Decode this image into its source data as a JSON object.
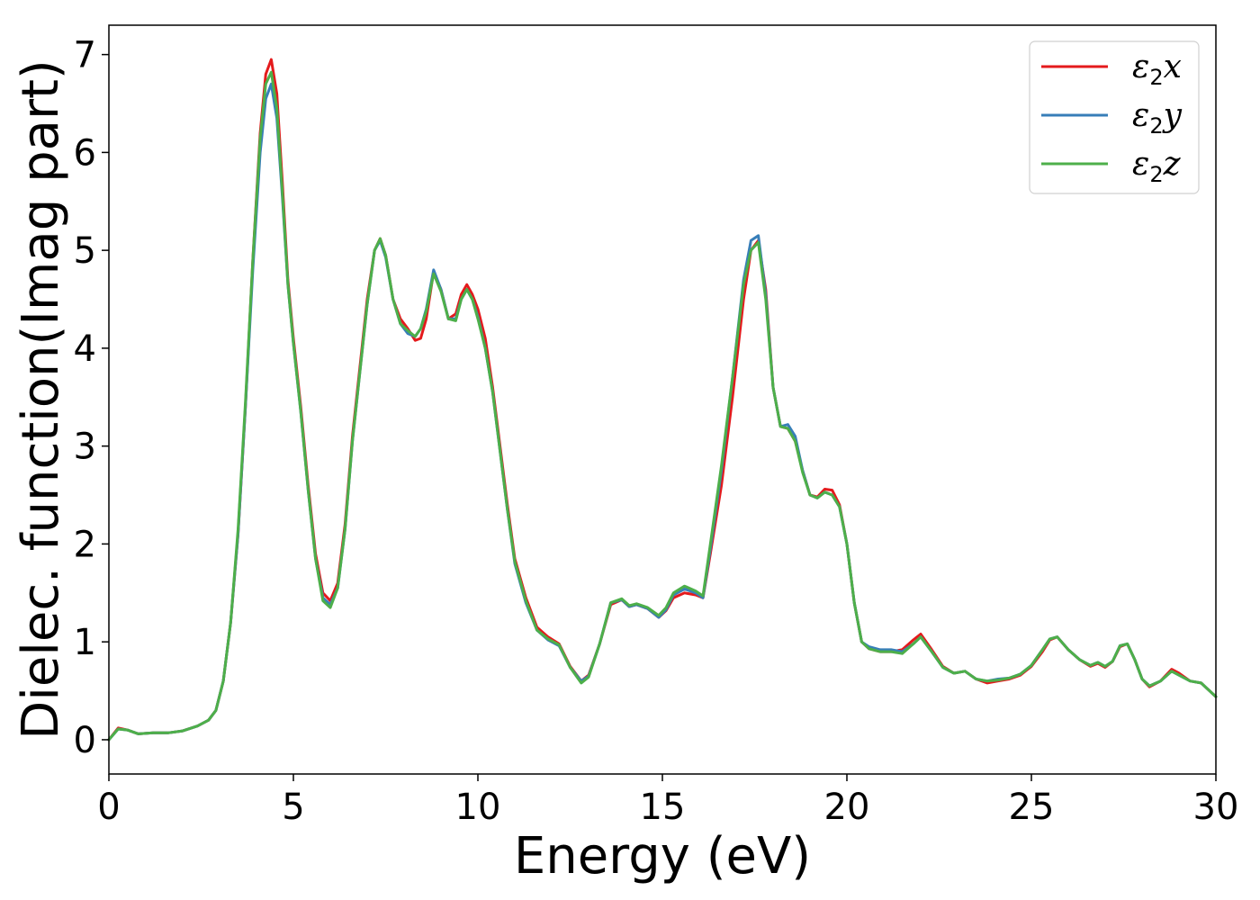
{
  "chart_data": {
    "type": "line",
    "title": "",
    "xlabel": "Energy (eV)",
    "ylabel": "Dielec. function(Imag part)",
    "xlim": [
      0,
      30
    ],
    "ylim": [
      -0.35,
      7.3
    ],
    "xticks": [
      "0",
      "5",
      "10",
      "15",
      "20",
      "25",
      "30"
    ],
    "yticks": [
      "0",
      "1",
      "2",
      "3",
      "4",
      "5",
      "6",
      "7"
    ],
    "legend_position": "top-right",
    "grid": false,
    "series": [
      {
        "name": "ε2x",
        "legend_symbol": "ε",
        "legend_sub": "2",
        "legend_var": "x",
        "color": "#e41a1c",
        "x": [
          0,
          0.25,
          0.5,
          0.8,
          1.2,
          1.6,
          2.0,
          2.4,
          2.7,
          2.9,
          3.1,
          3.3,
          3.5,
          3.7,
          3.9,
          4.1,
          4.25,
          4.4,
          4.55,
          4.7,
          4.85,
          5.0,
          5.2,
          5.4,
          5.6,
          5.8,
          6.0,
          6.2,
          6.4,
          6.6,
          6.8,
          7.0,
          7.2,
          7.35,
          7.5,
          7.7,
          7.9,
          8.1,
          8.3,
          8.45,
          8.6,
          8.8,
          9.0,
          9.2,
          9.4,
          9.55,
          9.7,
          9.85,
          10.0,
          10.2,
          10.4,
          10.6,
          10.8,
          11.0,
          11.3,
          11.6,
          11.9,
          12.2,
          12.5,
          12.8,
          13.0,
          13.3,
          13.6,
          13.9,
          14.1,
          14.3,
          14.6,
          14.9,
          15.1,
          15.3,
          15.6,
          15.9,
          16.1,
          16.3,
          16.6,
          16.9,
          17.2,
          17.4,
          17.6,
          17.8,
          18.0,
          18.2,
          18.4,
          18.6,
          18.8,
          19.0,
          19.2,
          19.4,
          19.6,
          19.8,
          20.0,
          20.2,
          20.4,
          20.6,
          20.9,
          21.2,
          21.5,
          21.8,
          22.0,
          22.3,
          22.6,
          22.9,
          23.2,
          23.5,
          23.8,
          24.1,
          24.4,
          24.7,
          25.0,
          25.3,
          25.5,
          25.7,
          26.0,
          26.3,
          26.6,
          26.8,
          27.0,
          27.2,
          27.4,
          27.6,
          27.8,
          28.0,
          28.2,
          28.5,
          28.8,
          29.0,
          29.3,
          29.6,
          30.0
        ],
        "values": [
          0.0,
          0.12,
          0.1,
          0.06,
          0.07,
          0.07,
          0.09,
          0.14,
          0.2,
          0.3,
          0.6,
          1.2,
          2.1,
          3.4,
          4.9,
          6.2,
          6.8,
          6.95,
          6.6,
          5.7,
          4.7,
          4.1,
          3.4,
          2.6,
          1.9,
          1.5,
          1.42,
          1.6,
          2.2,
          3.1,
          3.8,
          4.5,
          5.0,
          5.12,
          4.95,
          4.5,
          4.3,
          4.2,
          4.08,
          4.1,
          4.3,
          4.78,
          4.6,
          4.3,
          4.35,
          4.55,
          4.65,
          4.55,
          4.4,
          4.1,
          3.6,
          3.0,
          2.4,
          1.85,
          1.45,
          1.15,
          1.05,
          0.98,
          0.75,
          0.6,
          0.66,
          0.98,
          1.38,
          1.43,
          1.36,
          1.38,
          1.34,
          1.25,
          1.32,
          1.45,
          1.5,
          1.48,
          1.45,
          1.9,
          2.6,
          3.5,
          4.5,
          5.0,
          5.1,
          4.6,
          3.6,
          3.2,
          3.18,
          3.05,
          2.75,
          2.5,
          2.48,
          2.56,
          2.55,
          2.4,
          2.0,
          1.4,
          1.0,
          0.93,
          0.9,
          0.9,
          0.92,
          1.02,
          1.08,
          0.92,
          0.75,
          0.68,
          0.7,
          0.62,
          0.58,
          0.6,
          0.62,
          0.66,
          0.75,
          0.9,
          1.02,
          1.05,
          0.92,
          0.82,
          0.75,
          0.78,
          0.74,
          0.8,
          0.95,
          0.98,
          0.82,
          0.62,
          0.54,
          0.6,
          0.72,
          0.68,
          0.6,
          0.58,
          0.44
        ]
      },
      {
        "name": "ε2y",
        "legend_symbol": "ε",
        "legend_sub": "2",
        "legend_var": "y",
        "color": "#377eb8",
        "x": [
          0,
          0.25,
          0.5,
          0.8,
          1.2,
          1.6,
          2.0,
          2.4,
          2.7,
          2.9,
          3.1,
          3.3,
          3.5,
          3.7,
          3.9,
          4.1,
          4.25,
          4.4,
          4.55,
          4.7,
          4.85,
          5.0,
          5.2,
          5.4,
          5.6,
          5.8,
          6.0,
          6.2,
          6.4,
          6.6,
          6.8,
          7.0,
          7.2,
          7.35,
          7.5,
          7.7,
          7.9,
          8.1,
          8.3,
          8.45,
          8.6,
          8.8,
          9.0,
          9.2,
          9.4,
          9.55,
          9.7,
          9.85,
          10.0,
          10.2,
          10.4,
          10.6,
          10.8,
          11.0,
          11.3,
          11.6,
          11.9,
          12.2,
          12.5,
          12.8,
          13.0,
          13.3,
          13.6,
          13.9,
          14.1,
          14.3,
          14.6,
          14.9,
          15.1,
          15.3,
          15.6,
          15.9,
          16.1,
          16.3,
          16.6,
          16.9,
          17.2,
          17.4,
          17.6,
          17.8,
          18.0,
          18.2,
          18.4,
          18.6,
          18.8,
          19.0,
          19.2,
          19.4,
          19.6,
          19.8,
          20.0,
          20.2,
          20.4,
          20.6,
          20.9,
          21.2,
          21.5,
          21.8,
          22.0,
          22.3,
          22.6,
          22.9,
          23.2,
          23.5,
          23.8,
          24.1,
          24.4,
          24.7,
          25.0,
          25.3,
          25.5,
          25.7,
          26.0,
          26.3,
          26.6,
          26.8,
          27.0,
          27.2,
          27.4,
          27.6,
          27.8,
          28.0,
          28.2,
          28.5,
          28.8,
          29.0,
          29.3,
          29.6,
          30.0
        ],
        "values": [
          0.0,
          0.11,
          0.1,
          0.06,
          0.07,
          0.07,
          0.09,
          0.14,
          0.2,
          0.3,
          0.6,
          1.2,
          2.1,
          3.4,
          4.8,
          6.0,
          6.55,
          6.7,
          6.35,
          5.55,
          4.65,
          4.05,
          3.35,
          2.55,
          1.85,
          1.45,
          1.38,
          1.55,
          2.15,
          3.05,
          3.75,
          4.45,
          5.0,
          5.1,
          4.93,
          4.5,
          4.25,
          4.15,
          4.12,
          4.2,
          4.4,
          4.8,
          4.6,
          4.3,
          4.3,
          4.5,
          4.6,
          4.5,
          4.32,
          4.0,
          3.55,
          2.95,
          2.35,
          1.8,
          1.4,
          1.12,
          1.02,
          0.96,
          0.74,
          0.6,
          0.65,
          0.98,
          1.4,
          1.43,
          1.36,
          1.38,
          1.34,
          1.25,
          1.33,
          1.48,
          1.54,
          1.5,
          1.45,
          1.95,
          2.75,
          3.7,
          4.7,
          5.1,
          5.15,
          4.55,
          3.6,
          3.2,
          3.22,
          3.1,
          2.75,
          2.5,
          2.47,
          2.53,
          2.5,
          2.38,
          2.0,
          1.4,
          1.0,
          0.95,
          0.92,
          0.92,
          0.9,
          0.98,
          1.05,
          0.9,
          0.74,
          0.68,
          0.7,
          0.62,
          0.6,
          0.62,
          0.63,
          0.67,
          0.76,
          0.92,
          1.03,
          1.05,
          0.92,
          0.82,
          0.76,
          0.79,
          0.75,
          0.8,
          0.96,
          0.98,
          0.82,
          0.62,
          0.55,
          0.6,
          0.7,
          0.66,
          0.6,
          0.58,
          0.44
        ]
      },
      {
        "name": "ε2z",
        "legend_symbol": "ε",
        "legend_sub": "2",
        "legend_var": "z",
        "color": "#4daf4a",
        "x": [
          0,
          0.25,
          0.5,
          0.8,
          1.2,
          1.6,
          2.0,
          2.4,
          2.7,
          2.9,
          3.1,
          3.3,
          3.5,
          3.7,
          3.9,
          4.1,
          4.25,
          4.4,
          4.55,
          4.7,
          4.85,
          5.0,
          5.2,
          5.4,
          5.6,
          5.8,
          6.0,
          6.2,
          6.4,
          6.6,
          6.8,
          7.0,
          7.2,
          7.35,
          7.5,
          7.7,
          7.9,
          8.1,
          8.3,
          8.45,
          8.6,
          8.8,
          9.0,
          9.2,
          9.4,
          9.55,
          9.7,
          9.85,
          10.0,
          10.2,
          10.4,
          10.6,
          10.8,
          11.0,
          11.3,
          11.6,
          11.9,
          12.2,
          12.5,
          12.8,
          13.0,
          13.3,
          13.6,
          13.9,
          14.1,
          14.3,
          14.6,
          14.9,
          15.1,
          15.3,
          15.6,
          15.9,
          16.1,
          16.3,
          16.6,
          16.9,
          17.2,
          17.4,
          17.6,
          17.8,
          18.0,
          18.2,
          18.4,
          18.6,
          18.8,
          19.0,
          19.2,
          19.4,
          19.6,
          19.8,
          20.0,
          20.2,
          20.4,
          20.6,
          20.9,
          21.2,
          21.5,
          21.8,
          22.0,
          22.3,
          22.6,
          22.9,
          23.2,
          23.5,
          23.8,
          24.1,
          24.4,
          24.7,
          25.0,
          25.3,
          25.5,
          25.7,
          26.0,
          26.3,
          26.6,
          26.8,
          27.0,
          27.2,
          27.4,
          27.6,
          27.8,
          28.0,
          28.2,
          28.5,
          28.8,
          29.0,
          29.3,
          29.6,
          30.0
        ],
        "values": [
          0.0,
          0.11,
          0.1,
          0.06,
          0.07,
          0.07,
          0.09,
          0.14,
          0.2,
          0.3,
          0.6,
          1.2,
          2.15,
          3.45,
          4.9,
          6.15,
          6.7,
          6.82,
          6.45,
          5.6,
          4.65,
          4.05,
          3.35,
          2.55,
          1.85,
          1.42,
          1.35,
          1.55,
          2.15,
          3.05,
          3.75,
          4.45,
          5.0,
          5.12,
          4.95,
          4.5,
          4.25,
          4.18,
          4.12,
          4.2,
          4.38,
          4.76,
          4.58,
          4.3,
          4.28,
          4.5,
          4.6,
          4.5,
          4.3,
          4.0,
          3.55,
          2.95,
          2.35,
          1.82,
          1.42,
          1.12,
          1.03,
          0.97,
          0.74,
          0.58,
          0.64,
          0.98,
          1.4,
          1.44,
          1.37,
          1.39,
          1.35,
          1.27,
          1.35,
          1.5,
          1.57,
          1.52,
          1.47,
          2.0,
          2.8,
          3.7,
          4.65,
          5.0,
          5.08,
          4.5,
          3.6,
          3.2,
          3.18,
          3.05,
          2.73,
          2.5,
          2.47,
          2.53,
          2.5,
          2.38,
          2.0,
          1.4,
          1.0,
          0.93,
          0.9,
          0.9,
          0.88,
          0.98,
          1.05,
          0.9,
          0.74,
          0.68,
          0.7,
          0.62,
          0.6,
          0.61,
          0.63,
          0.67,
          0.76,
          0.92,
          1.03,
          1.05,
          0.92,
          0.82,
          0.76,
          0.79,
          0.75,
          0.8,
          0.96,
          0.98,
          0.82,
          0.62,
          0.55,
          0.6,
          0.7,
          0.66,
          0.6,
          0.58,
          0.44
        ]
      }
    ]
  }
}
